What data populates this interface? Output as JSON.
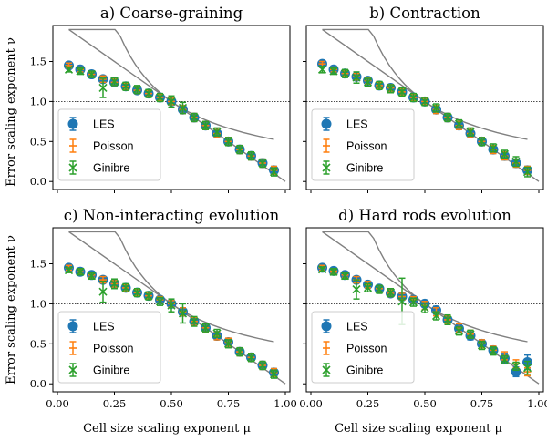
{
  "chart_data": {
    "type": "scatter",
    "xlabel": "Cell size scaling exponent μ",
    "ylabel": "Error scaling exponent ν",
    "xlim": [
      0.0,
      1.0
    ],
    "ylim": [
      -0.1,
      1.95
    ],
    "xticks": [
      "0.00",
      "0.25",
      "0.50",
      "0.75",
      "1.00"
    ],
    "yticks": [
      "0.0",
      "0.5",
      "1.0",
      "1.5"
    ],
    "colors": {
      "LES": "#1f77b4",
      "Poisson": "#ff7f0e",
      "Ginibre": "#2ca02c",
      "reference": "#808080"
    },
    "legend_labels": [
      "LES",
      "Poisson",
      "Ginibre"
    ],
    "reference_line": {
      "description": "nu = min(1, 2*(1-mu)) trend and 1/(2mu) curve",
      "dashed_y": 1.0
    },
    "panels": [
      {
        "title": "a) Coarse-graining",
        "x": [
          0.05,
          0.1,
          0.15,
          0.2,
          0.25,
          0.3,
          0.35,
          0.4,
          0.45,
          0.5,
          0.55,
          0.6,
          0.65,
          0.7,
          0.75,
          0.8,
          0.85,
          0.9,
          0.95
        ],
        "series": [
          {
            "name": "LES",
            "values": [
              1.45,
              1.4,
              1.34,
              1.28,
              1.24,
              1.19,
              1.14,
              1.1,
              1.05,
              1.0,
              0.9,
              0.8,
              0.7,
              0.6,
              0.5,
              0.4,
              0.32,
              0.23,
              0.14
            ],
            "errors": [
              0.03,
              0.03,
              0.03,
              0.04,
              0.04,
              0.04,
              0.04,
              0.04,
              0.04,
              0.04,
              0.05,
              0.05,
              0.05,
              0.05,
              0.05,
              0.05,
              0.05,
              0.05,
              0.05
            ]
          },
          {
            "name": "Poisson",
            "values": [
              1.45,
              1.4,
              1.34,
              1.28,
              1.24,
              1.19,
              1.14,
              1.1,
              1.05,
              1.0,
              0.9,
              0.8,
              0.7,
              0.6,
              0.5,
              0.4,
              0.32,
              0.23,
              0.14
            ],
            "errors": [
              0.03,
              0.03,
              0.03,
              0.04,
              0.04,
              0.04,
              0.04,
              0.04,
              0.04,
              0.04,
              0.05,
              0.05,
              0.05,
              0.05,
              0.05,
              0.05,
              0.05,
              0.05,
              0.05
            ]
          },
          {
            "name": "Ginibre",
            "values": [
              1.4,
              1.38,
              1.34,
              1.17,
              1.25,
              1.19,
              1.15,
              1.1,
              1.05,
              1.0,
              0.92,
              0.8,
              0.7,
              0.62,
              0.5,
              0.4,
              0.32,
              0.23,
              0.12
            ],
            "errors": [
              0.03,
              0.04,
              0.04,
              0.12,
              0.05,
              0.05,
              0.05,
              0.05,
              0.05,
              0.07,
              0.07,
              0.05,
              0.05,
              0.05,
              0.05,
              0.05,
              0.05,
              0.05,
              0.05
            ]
          }
        ]
      },
      {
        "title": "b) Contraction",
        "x": [
          0.05,
          0.1,
          0.15,
          0.2,
          0.25,
          0.3,
          0.35,
          0.4,
          0.45,
          0.5,
          0.55,
          0.6,
          0.65,
          0.7,
          0.75,
          0.8,
          0.85,
          0.9,
          0.95
        ],
        "series": [
          {
            "name": "LES",
            "values": [
              1.47,
              1.4,
              1.35,
              1.31,
              1.26,
              1.2,
              1.17,
              1.12,
              1.05,
              1.0,
              0.9,
              0.8,
              0.7,
              0.6,
              0.5,
              0.4,
              0.32,
              0.23,
              0.14
            ],
            "errors": [
              0.03,
              0.03,
              0.03,
              0.04,
              0.04,
              0.04,
              0.04,
              0.04,
              0.04,
              0.04,
              0.05,
              0.05,
              0.05,
              0.05,
              0.05,
              0.05,
              0.05,
              0.05,
              0.05
            ]
          },
          {
            "name": "Poisson",
            "values": [
              1.47,
              1.4,
              1.35,
              1.31,
              1.26,
              1.2,
              1.17,
              1.12,
              1.05,
              1.0,
              0.9,
              0.8,
              0.7,
              0.6,
              0.5,
              0.4,
              0.32,
              0.23,
              0.14
            ],
            "errors": [
              0.03,
              0.03,
              0.03,
              0.04,
              0.04,
              0.04,
              0.04,
              0.04,
              0.04,
              0.04,
              0.05,
              0.05,
              0.05,
              0.05,
              0.05,
              0.05,
              0.05,
              0.05,
              0.05
            ]
          },
          {
            "name": "Ginibre",
            "values": [
              1.4,
              1.38,
              1.35,
              1.3,
              1.24,
              1.2,
              1.16,
              1.12,
              1.05,
              1.0,
              0.92,
              0.8,
              0.72,
              0.62,
              0.5,
              0.42,
              0.34,
              0.25,
              0.12
            ],
            "errors": [
              0.04,
              0.04,
              0.05,
              0.07,
              0.05,
              0.05,
              0.05,
              0.05,
              0.05,
              0.05,
              0.05,
              0.05,
              0.05,
              0.05,
              0.05,
              0.05,
              0.05,
              0.06,
              0.06
            ]
          }
        ]
      },
      {
        "title": "c) Non-interacting evolution",
        "x": [
          0.05,
          0.1,
          0.15,
          0.2,
          0.25,
          0.3,
          0.35,
          0.4,
          0.45,
          0.5,
          0.55,
          0.6,
          0.65,
          0.7,
          0.75,
          0.8,
          0.85,
          0.9,
          0.95
        ],
        "series": [
          {
            "name": "LES",
            "values": [
              1.45,
              1.4,
              1.36,
              1.3,
              1.25,
              1.2,
              1.14,
              1.1,
              1.05,
              1.0,
              0.9,
              0.78,
              0.7,
              0.6,
              0.52,
              0.4,
              0.33,
              0.23,
              0.14
            ],
            "errors": [
              0.03,
              0.03,
              0.03,
              0.04,
              0.04,
              0.04,
              0.04,
              0.04,
              0.04,
              0.04,
              0.05,
              0.05,
              0.05,
              0.05,
              0.05,
              0.05,
              0.05,
              0.05,
              0.05
            ]
          },
          {
            "name": "Poisson",
            "values": [
              1.45,
              1.4,
              1.36,
              1.3,
              1.25,
              1.2,
              1.14,
              1.1,
              1.05,
              1.0,
              0.9,
              0.78,
              0.7,
              0.6,
              0.52,
              0.4,
              0.33,
              0.23,
              0.14
            ],
            "errors": [
              0.03,
              0.03,
              0.03,
              0.04,
              0.04,
              0.04,
              0.04,
              0.04,
              0.04,
              0.04,
              0.05,
              0.05,
              0.05,
              0.05,
              0.05,
              0.05,
              0.05,
              0.05,
              0.05
            ]
          },
          {
            "name": "Ginibre",
            "values": [
              1.42,
              1.4,
              1.35,
              1.15,
              1.25,
              1.2,
              1.14,
              1.1,
              1.03,
              0.98,
              0.88,
              0.78,
              0.7,
              0.63,
              0.5,
              0.4,
              0.33,
              0.23,
              0.12
            ],
            "errors": [
              0.03,
              0.04,
              0.04,
              0.13,
              0.06,
              0.05,
              0.05,
              0.05,
              0.05,
              0.08,
              0.12,
              0.06,
              0.05,
              0.05,
              0.05,
              0.05,
              0.05,
              0.05,
              0.05
            ]
          }
        ]
      },
      {
        "title": "d) Hard rods evolution",
        "x": [
          0.05,
          0.1,
          0.15,
          0.2,
          0.25,
          0.3,
          0.35,
          0.4,
          0.45,
          0.5,
          0.55,
          0.6,
          0.65,
          0.7,
          0.75,
          0.8,
          0.85,
          0.9,
          0.95
        ],
        "series": [
          {
            "name": "LES",
            "values": [
              1.45,
              1.41,
              1.36,
              1.3,
              1.24,
              1.19,
              1.13,
              1.09,
              1.05,
              1.0,
              0.92,
              0.8,
              0.69,
              0.6,
              0.5,
              0.42,
              0.32,
              0.15,
              0.27
            ],
            "errors": [
              0.03,
              0.03,
              0.03,
              0.04,
              0.04,
              0.04,
              0.04,
              0.04,
              0.04,
              0.04,
              0.05,
              0.05,
              0.05,
              0.05,
              0.05,
              0.05,
              0.06,
              0.06,
              0.09
            ]
          },
          {
            "name": "Poisson",
            "values": [
              1.45,
              1.41,
              1.36,
              1.3,
              1.24,
              1.19,
              1.13,
              1.09,
              1.05,
              0.98,
              0.9,
              0.8,
              0.7,
              0.62,
              0.5,
              0.42,
              0.35,
              0.25,
              0.15
            ],
            "errors": [
              0.03,
              0.03,
              0.03,
              0.04,
              0.04,
              0.04,
              0.04,
              0.04,
              0.04,
              0.05,
              0.05,
              0.05,
              0.05,
              0.05,
              0.05,
              0.05,
              0.05,
              0.05,
              0.05
            ]
          },
          {
            "name": "Ginibre",
            "values": [
              1.43,
              1.4,
              1.35,
              1.18,
              1.2,
              1.18,
              1.14,
              1.03,
              1.02,
              0.95,
              0.85,
              0.8,
              0.66,
              0.62,
              0.48,
              0.41,
              0.3,
              0.22,
              0.2
            ],
            "errors": [
              0.03,
              0.04,
              0.04,
              0.12,
              0.05,
              0.05,
              0.05,
              0.29,
              0.05,
              0.06,
              0.05,
              0.06,
              0.05,
              0.05,
              0.05,
              0.05,
              0.05,
              0.05,
              0.08
            ]
          }
        ]
      }
    ]
  }
}
